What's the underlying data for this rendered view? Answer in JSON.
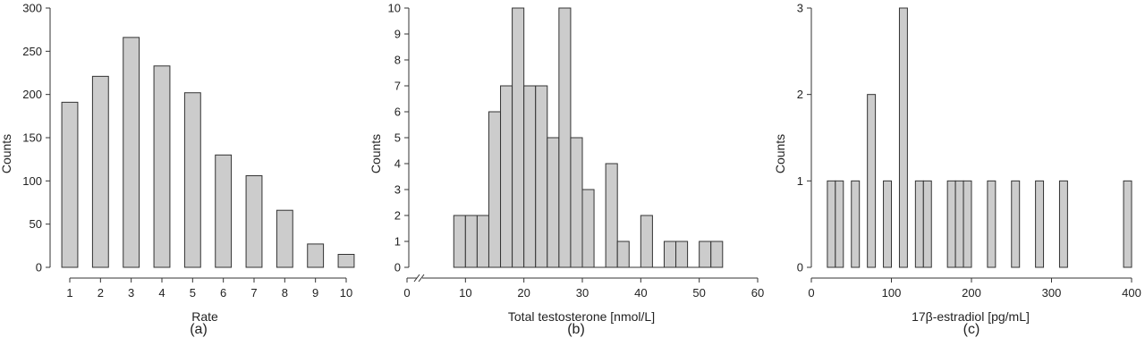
{
  "chart_data": [
    {
      "type": "bar",
      "panel_label": "(a)",
      "xlabel": "Rate",
      "ylabel": "Counts",
      "categories": [
        "1",
        "2",
        "3",
        "4",
        "5",
        "6",
        "7",
        "8",
        "9",
        "10"
      ],
      "values": [
        191,
        221,
        266,
        233,
        202,
        130,
        106,
        66,
        27,
        15
      ],
      "ylim": [
        0,
        300
      ],
      "yticks": [
        0,
        50,
        100,
        150,
        200,
        250,
        300
      ],
      "bar_color": "#cccccc",
      "grid": false
    },
    {
      "type": "bar",
      "panel_label": "(b)",
      "xlabel": "Total testosterone [nmol/L]",
      "ylabel": "Counts",
      "bin_width": 2,
      "bin_starts": [
        8,
        10,
        12,
        14,
        16,
        18,
        20,
        22,
        24,
        26,
        28,
        30,
        32,
        34,
        36,
        38,
        40,
        42,
        44,
        46,
        48,
        50,
        52
      ],
      "values": [
        2,
        2,
        2,
        6,
        7,
        10,
        7,
        7,
        5,
        10,
        5,
        3,
        0,
        4,
        1,
        0,
        2,
        0,
        1,
        1,
        0,
        1,
        1
      ],
      "xlim": [
        0,
        60
      ],
      "xticks": [
        0,
        10,
        20,
        30,
        40,
        50,
        60
      ],
      "ylim": [
        0,
        10
      ],
      "yticks": [
        0,
        1,
        2,
        3,
        4,
        5,
        6,
        7,
        8,
        9,
        10
      ],
      "axis_break": true,
      "bar_color": "#cccccc",
      "grid": false
    },
    {
      "type": "bar",
      "panel_label": "(c)",
      "xlabel": "17β-estradiol [pg/mL]",
      "ylabel": "Counts",
      "bin_width": 10,
      "bin_starts": [
        20,
        30,
        50,
        70,
        90,
        110,
        130,
        140,
        170,
        180,
        190,
        220,
        250,
        280,
        310,
        390
      ],
      "values": [
        1,
        1,
        1,
        2,
        1,
        3,
        1,
        1,
        1,
        1,
        1,
        1,
        1,
        1,
        1,
        1
      ],
      "xlim": [
        0,
        400
      ],
      "xticks": [
        0,
        100,
        200,
        300,
        400
      ],
      "ylim": [
        0,
        3
      ],
      "yticks": [
        0,
        1,
        2,
        3
      ],
      "bar_color": "#cccccc",
      "grid": false
    }
  ]
}
